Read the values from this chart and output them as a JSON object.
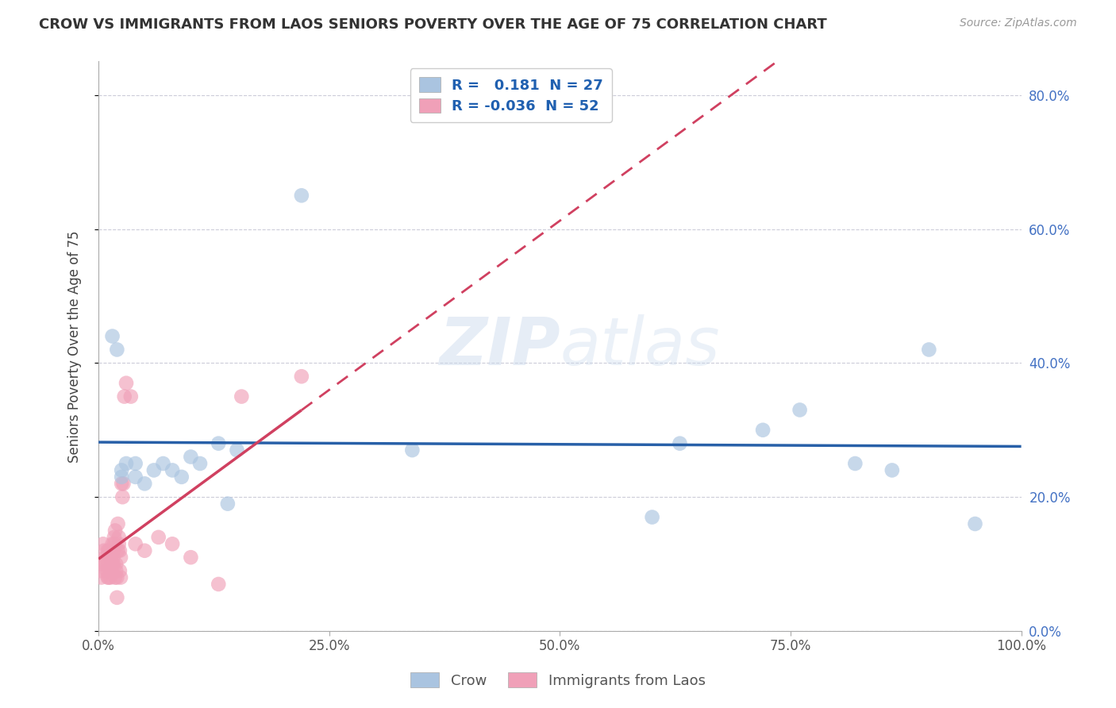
{
  "title": "CROW VS IMMIGRANTS FROM LAOS SENIORS POVERTY OVER THE AGE OF 75 CORRELATION CHART",
  "source": "Source: ZipAtlas.com",
  "ylabel": "Seniors Poverty Over the Age of 75",
  "crow_R": 0.181,
  "crow_N": 27,
  "laos_R": -0.036,
  "laos_N": 52,
  "crow_color": "#aac4e0",
  "laos_color": "#f0a0b8",
  "crow_line_color": "#2860a8",
  "laos_line_color": "#d04060",
  "background_color": "#ffffff",
  "grid_color": "#c0c0d0",
  "xlim": [
    0.0,
    1.0
  ],
  "ylim": [
    0.0,
    0.85
  ],
  "xticks": [
    0.0,
    0.25,
    0.5,
    0.75,
    1.0
  ],
  "xtick_labels": [
    "0.0%",
    "25.0%",
    "50.0%",
    "75.0%",
    "100.0%"
  ],
  "ytick_positions": [
    0.0,
    0.2,
    0.4,
    0.6,
    0.8
  ],
  "ytick_labels": [
    "0.0%",
    "20.0%",
    "40.0%",
    "60.0%",
    "80.0%"
  ],
  "crow_x": [
    0.015,
    0.02,
    0.025,
    0.025,
    0.03,
    0.04,
    0.04,
    0.05,
    0.06,
    0.07,
    0.08,
    0.09,
    0.1,
    0.11,
    0.13,
    0.14,
    0.22,
    0.34,
    0.6,
    0.63,
    0.72,
    0.76,
    0.82,
    0.86,
    0.9,
    0.95,
    0.15
  ],
  "crow_y": [
    0.44,
    0.42,
    0.23,
    0.24,
    0.25,
    0.25,
    0.23,
    0.22,
    0.24,
    0.25,
    0.24,
    0.23,
    0.26,
    0.25,
    0.28,
    0.19,
    0.65,
    0.27,
    0.17,
    0.28,
    0.3,
    0.33,
    0.25,
    0.24,
    0.42,
    0.16,
    0.27
  ],
  "laos_x": [
    0.002,
    0.003,
    0.004,
    0.005,
    0.005,
    0.006,
    0.007,
    0.008,
    0.009,
    0.01,
    0.01,
    0.011,
    0.012,
    0.013,
    0.013,
    0.014,
    0.014,
    0.015,
    0.015,
    0.016,
    0.016,
    0.016,
    0.017,
    0.017,
    0.018,
    0.018,
    0.019,
    0.019,
    0.02,
    0.02,
    0.021,
    0.021,
    0.022,
    0.022,
    0.023,
    0.023,
    0.024,
    0.024,
    0.025,
    0.026,
    0.027,
    0.028,
    0.03,
    0.035,
    0.04,
    0.05,
    0.065,
    0.08,
    0.1,
    0.13,
    0.155,
    0.22
  ],
  "laos_y": [
    0.09,
    0.08,
    0.1,
    0.13,
    0.1,
    0.12,
    0.11,
    0.1,
    0.09,
    0.08,
    0.12,
    0.08,
    0.12,
    0.08,
    0.11,
    0.1,
    0.09,
    0.13,
    0.1,
    0.12,
    0.11,
    0.1,
    0.13,
    0.14,
    0.08,
    0.15,
    0.09,
    0.1,
    0.08,
    0.05,
    0.16,
    0.12,
    0.13,
    0.14,
    0.09,
    0.12,
    0.08,
    0.11,
    0.22,
    0.2,
    0.22,
    0.35,
    0.37,
    0.35,
    0.13,
    0.12,
    0.14,
    0.13,
    0.11,
    0.07,
    0.35,
    0.38
  ],
  "legend_label_color": "#2060b0",
  "ytick_color": "#4472c4",
  "xtick_color": "#555555"
}
